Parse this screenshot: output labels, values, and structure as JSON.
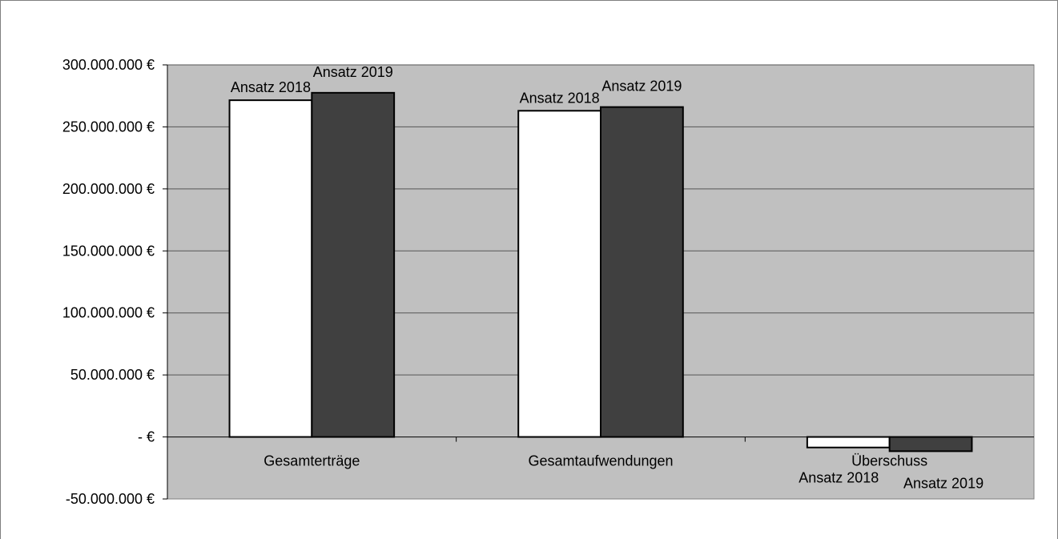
{
  "chart_data": {
    "type": "bar",
    "title": "",
    "xlabel": "",
    "ylabel": "",
    "categories": [
      "Gesamterträge",
      "Gesamtaufwendungen",
      "Überschuss"
    ],
    "series": [
      {
        "name": "Ansatz 2018",
        "values": [
          271500000,
          263000000,
          -8500000
        ],
        "color": "#ffffff"
      },
      {
        "name": "Ansatz 2019",
        "values": [
          277500000,
          266000000,
          -11500000
        ],
        "color": "#404040"
      }
    ],
    "ylim": [
      -50000000,
      300000000
    ],
    "yticks": [
      -50000000,
      0,
      50000000,
      100000000,
      150000000,
      200000000,
      250000000,
      300000000
    ],
    "ytick_labels": [
      "-50.000.000 €",
      "-   €",
      "50.000.000 €",
      "100.000.000 €",
      "150.000.000 €",
      "200.000.000 €",
      "250.000.000 €",
      "300.000.000 €"
    ],
    "grid": true,
    "plot_background": "#c0c0c0",
    "legend": "none"
  }
}
